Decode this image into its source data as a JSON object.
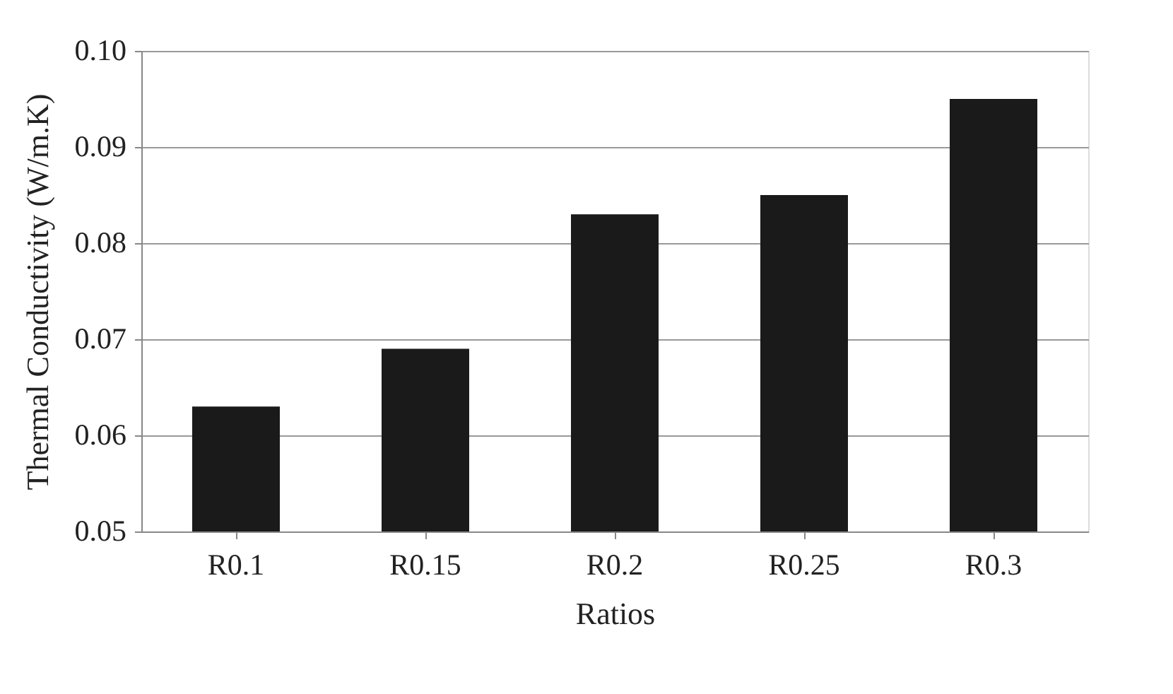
{
  "chart_data": {
    "type": "bar",
    "xlabel": "Ratios",
    "ylabel": "Thermal Conductivity (W/m.K)",
    "categories": [
      "R0.1",
      "R0.15",
      "R0.2",
      "R0.25",
      "R0.3"
    ],
    "values": [
      0.063,
      0.069,
      0.083,
      0.085,
      0.095
    ],
    "color": "#1a1a1a",
    "ylim": [
      0.05,
      0.1
    ],
    "yticks": [
      0.05,
      0.06,
      0.07,
      0.08,
      0.09,
      {
        "value": 0.1,
        "label": "0.10"
      }
    ],
    "grid": "y"
  }
}
